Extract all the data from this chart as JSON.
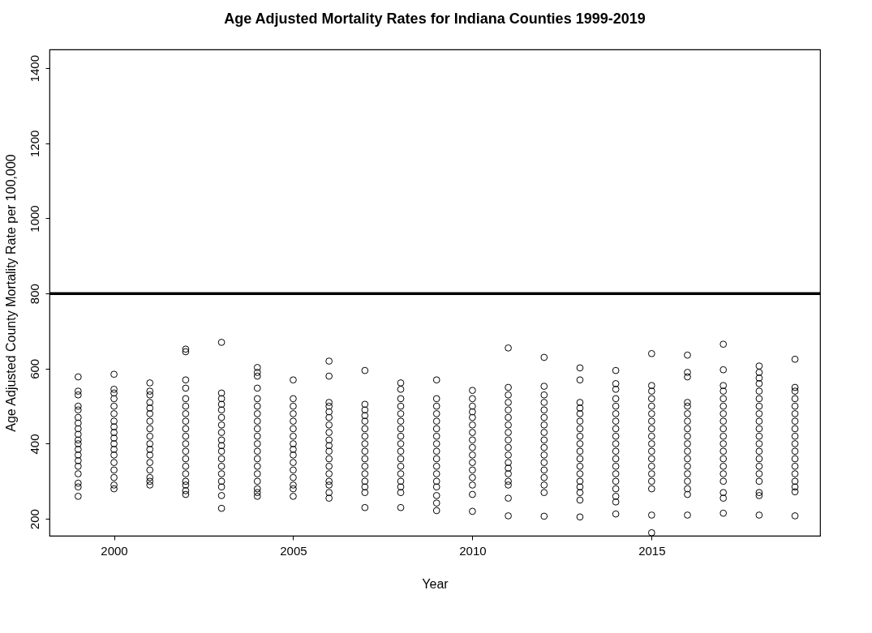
{
  "chart_data": {
    "type": "scatter",
    "title": "Age Adjusted Mortality Rates for Indiana Counties 1999-2019",
    "xlabel": "Year",
    "ylabel": "Age Adjusted County Mortality Rate per 100,000",
    "xlim": [
      1998.2,
      2019.7
    ],
    "ylim": [
      155,
      1450
    ],
    "xticks": [
      2000,
      2005,
      2010,
      2015
    ],
    "yticks": [
      200,
      400,
      600,
      800,
      1000,
      1200,
      1400
    ],
    "grid": false,
    "marker": "circle",
    "ref_lines": [
      {
        "axis": "y",
        "value": 800,
        "color": "#000000",
        "line_style": "solid"
      }
    ],
    "series": [
      {
        "color": "#000000",
        "x": [
          1999,
          1999,
          1999,
          1999,
          1999,
          1999,
          1999,
          1999,
          1999,
          1999,
          1999,
          1999,
          1999,
          1999,
          1999,
          1999,
          1999,
          1999,
          1999
        ],
        "values": [
          578,
          540,
          530,
          500,
          490,
          470,
          455,
          440,
          425,
          410,
          400,
          385,
          370,
          355,
          340,
          320,
          295,
          285,
          260
        ]
      },
      {
        "color": "#000000",
        "x": [
          2000,
          2000,
          2000,
          2000,
          2000,
          2000,
          2000,
          2000,
          2000,
          2000,
          2000,
          2000,
          2000,
          2000,
          2000,
          2000,
          2000,
          2000
        ],
        "values": [
          585,
          545,
          535,
          520,
          500,
          480,
          460,
          445,
          430,
          415,
          400,
          385,
          370,
          350,
          330,
          310,
          290,
          280
        ]
      },
      {
        "color": "#000000",
        "x": [
          2001,
          2001,
          2001,
          2001,
          2001,
          2001,
          2001,
          2001,
          2001,
          2001,
          2001,
          2001,
          2001,
          2001,
          2001,
          2001,
          2001
        ],
        "values": [
          562,
          540,
          530,
          510,
          495,
          480,
          460,
          440,
          420,
          400,
          385,
          370,
          350,
          330,
          310,
          300,
          290
        ]
      },
      {
        "color": "#000000",
        "x": [
          2002,
          2002,
          2002,
          2002,
          2002,
          2002,
          2002,
          2002,
          2002,
          2002,
          2002,
          2002,
          2002,
          2002,
          2002,
          2002,
          2002,
          2002,
          2002
        ],
        "values": [
          652,
          645,
          570,
          548,
          520,
          500,
          480,
          460,
          440,
          420,
          400,
          380,
          360,
          340,
          320,
          300,
          290,
          275,
          265
        ]
      },
      {
        "color": "#000000",
        "x": [
          2003,
          2003,
          2003,
          2003,
          2003,
          2003,
          2003,
          2003,
          2003,
          2003,
          2003,
          2003,
          2003,
          2003,
          2003,
          2003,
          2003,
          2003
        ],
        "values": [
          670,
          535,
          520,
          505,
          490,
          470,
          450,
          430,
          410,
          395,
          380,
          360,
          340,
          320,
          300,
          285,
          262,
          228
        ]
      },
      {
        "color": "#000000",
        "x": [
          2004,
          2004,
          2004,
          2004,
          2004,
          2004,
          2004,
          2004,
          2004,
          2004,
          2004,
          2004,
          2004,
          2004,
          2004,
          2004,
          2004,
          2004,
          2004
        ],
        "values": [
          603,
          590,
          580,
          548,
          520,
          500,
          480,
          460,
          440,
          420,
          400,
          380,
          360,
          340,
          320,
          300,
          280,
          270,
          260
        ]
      },
      {
        "color": "#000000",
        "x": [
          2005,
          2005,
          2005,
          2005,
          2005,
          2005,
          2005,
          2005,
          2005,
          2005,
          2005,
          2005,
          2005,
          2005,
          2005,
          2005
        ],
        "values": [
          570,
          520,
          500,
          480,
          460,
          440,
          420,
          400,
          385,
          370,
          350,
          330,
          310,
          290,
          280,
          260
        ]
      },
      {
        "color": "#000000",
        "x": [
          2006,
          2006,
          2006,
          2006,
          2006,
          2006,
          2006,
          2006,
          2006,
          2006,
          2006,
          2006,
          2006,
          2006,
          2006,
          2006,
          2006,
          2006
        ],
        "values": [
          620,
          580,
          510,
          500,
          485,
          470,
          450,
          430,
          410,
          395,
          380,
          360,
          340,
          320,
          300,
          290,
          270,
          255
        ]
      },
      {
        "color": "#000000",
        "x": [
          2007,
          2007,
          2007,
          2007,
          2007,
          2007,
          2007,
          2007,
          2007,
          2007,
          2007,
          2007,
          2007,
          2007,
          2007,
          2007
        ],
        "values": [
          595,
          505,
          490,
          475,
          460,
          440,
          420,
          400,
          380,
          360,
          340,
          320,
          300,
          285,
          270,
          230
        ]
      },
      {
        "color": "#000000",
        "x": [
          2008,
          2008,
          2008,
          2008,
          2008,
          2008,
          2008,
          2008,
          2008,
          2008,
          2008,
          2008,
          2008,
          2008,
          2008,
          2008,
          2008
        ],
        "values": [
          562,
          545,
          520,
          500,
          480,
          460,
          440,
          420,
          400,
          380,
          360,
          340,
          320,
          300,
          285,
          270,
          230
        ]
      },
      {
        "color": "#000000",
        "x": [
          2009,
          2009,
          2009,
          2009,
          2009,
          2009,
          2009,
          2009,
          2009,
          2009,
          2009,
          2009,
          2009,
          2009,
          2009,
          2009,
          2009
        ],
        "values": [
          570,
          520,
          500,
          480,
          460,
          440,
          420,
          400,
          380,
          360,
          340,
          320,
          300,
          285,
          262,
          242,
          222
        ]
      },
      {
        "color": "#000000",
        "x": [
          2010,
          2010,
          2010,
          2010,
          2010,
          2010,
          2010,
          2010,
          2010,
          2010,
          2010,
          2010,
          2010,
          2010,
          2010,
          2010
        ],
        "values": [
          542,
          520,
          500,
          485,
          470,
          450,
          430,
          410,
          390,
          370,
          350,
          330,
          310,
          290,
          265,
          220
        ]
      },
      {
        "color": "#000000",
        "x": [
          2011,
          2011,
          2011,
          2011,
          2011,
          2011,
          2011,
          2011,
          2011,
          2011,
          2011,
          2011,
          2011,
          2011,
          2011,
          2011,
          2011,
          2011
        ],
        "values": [
          655,
          550,
          530,
          510,
          490,
          470,
          450,
          430,
          410,
          390,
          370,
          350,
          335,
          320,
          300,
          290,
          255,
          208
        ]
      },
      {
        "color": "#000000",
        "x": [
          2012,
          2012,
          2012,
          2012,
          2012,
          2012,
          2012,
          2012,
          2012,
          2012,
          2012,
          2012,
          2012,
          2012,
          2012,
          2012,
          2012
        ],
        "values": [
          630,
          553,
          530,
          510,
          490,
          470,
          450,
          430,
          410,
          390,
          370,
          350,
          330,
          310,
          290,
          270,
          207
        ]
      },
      {
        "color": "#000000",
        "x": [
          2013,
          2013,
          2013,
          2013,
          2013,
          2013,
          2013,
          2013,
          2013,
          2013,
          2013,
          2013,
          2013,
          2013,
          2013,
          2013,
          2013,
          2013
        ],
        "values": [
          602,
          570,
          510,
          495,
          480,
          460,
          440,
          420,
          400,
          380,
          360,
          340,
          320,
          300,
          285,
          270,
          250,
          205
        ]
      },
      {
        "color": "#000000",
        "x": [
          2014,
          2014,
          2014,
          2014,
          2014,
          2014,
          2014,
          2014,
          2014,
          2014,
          2014,
          2014,
          2014,
          2014,
          2014,
          2014,
          2014,
          2014,
          2014
        ],
        "values": [
          595,
          560,
          545,
          520,
          500,
          480,
          460,
          440,
          420,
          400,
          380,
          360,
          340,
          320,
          300,
          280,
          260,
          245,
          213
        ]
      },
      {
        "color": "#000000",
        "x": [
          2015,
          2015,
          2015,
          2015,
          2015,
          2015,
          2015,
          2015,
          2015,
          2015,
          2015,
          2015,
          2015,
          2015,
          2015,
          2015,
          2015,
          2015
        ],
        "values": [
          640,
          555,
          540,
          520,
          500,
          480,
          460,
          440,
          420,
          400,
          380,
          360,
          340,
          320,
          300,
          280,
          210,
          163
        ]
      },
      {
        "color": "#000000",
        "x": [
          2016,
          2016,
          2016,
          2016,
          2016,
          2016,
          2016,
          2016,
          2016,
          2016,
          2016,
          2016,
          2016,
          2016,
          2016,
          2016,
          2016,
          2016
        ],
        "values": [
          636,
          590,
          578,
          510,
          500,
          480,
          460,
          440,
          420,
          400,
          380,
          360,
          340,
          320,
          300,
          280,
          265,
          210
        ]
      },
      {
        "color": "#000000",
        "x": [
          2017,
          2017,
          2017,
          2017,
          2017,
          2017,
          2017,
          2017,
          2017,
          2017,
          2017,
          2017,
          2017,
          2017,
          2017,
          2017,
          2017,
          2017,
          2017
        ],
        "values": [
          665,
          597,
          555,
          540,
          520,
          500,
          480,
          460,
          440,
          420,
          400,
          380,
          360,
          340,
          320,
          300,
          270,
          255,
          215
        ]
      },
      {
        "color": "#000000",
        "x": [
          2018,
          2018,
          2018,
          2018,
          2018,
          2018,
          2018,
          2018,
          2018,
          2018,
          2018,
          2018,
          2018,
          2018,
          2018,
          2018,
          2018,
          2018,
          2018,
          2018
        ],
        "values": [
          607,
          590,
          575,
          560,
          540,
          520,
          500,
          480,
          460,
          440,
          420,
          400,
          380,
          360,
          340,
          320,
          300,
          270,
          262,
          210
        ]
      },
      {
        "color": "#000000",
        "x": [
          2019,
          2019,
          2019,
          2019,
          2019,
          2019,
          2019,
          2019,
          2019,
          2019,
          2019,
          2019,
          2019,
          2019,
          2019,
          2019,
          2019,
          2019
        ],
        "values": [
          625,
          550,
          540,
          520,
          500,
          480,
          460,
          440,
          420,
          400,
          380,
          360,
          340,
          320,
          300,
          285,
          272,
          208
        ]
      }
    ]
  }
}
